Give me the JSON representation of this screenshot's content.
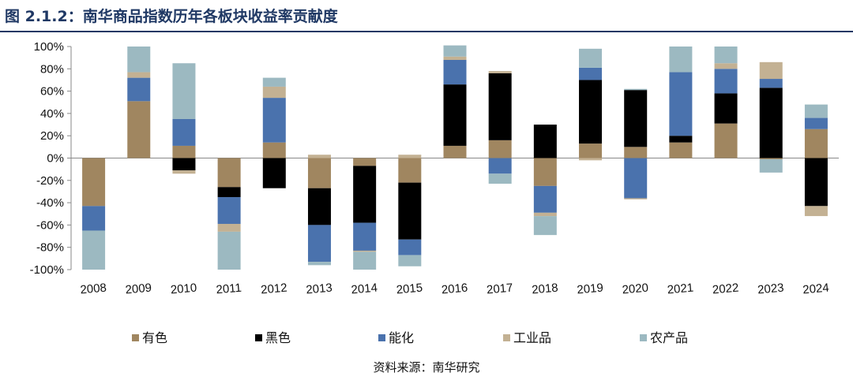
{
  "figure": {
    "title": "图 2.1.2：南华商品指数历年各板块收益率贡献度",
    "source": "资料来源：南华研究"
  },
  "chart_data": {
    "type": "bar",
    "stacked": true,
    "categories": [
      "2008",
      "2009",
      "2010",
      "2011",
      "2012",
      "2013",
      "2014",
      "2015",
      "2016",
      "2017",
      "2018",
      "2019",
      "2020",
      "2021",
      "2022",
      "2023",
      "2024"
    ],
    "series": [
      {
        "name": "有色",
        "color": "#a08660",
        "values": [
          -43,
          51,
          11,
          -26,
          14,
          -27,
          -7,
          -22,
          11,
          16,
          -25,
          13,
          10,
          14,
          31,
          -1,
          26
        ]
      },
      {
        "name": "黑色",
        "color": "#000000",
        "values": [
          0,
          0,
          -11,
          -9,
          -27,
          -33,
          -51,
          -51,
          55,
          60,
          30,
          57,
          51,
          6,
          27,
          63,
          -43
        ]
      },
      {
        "name": "能化",
        "color": "#4a72ad",
        "values": [
          -22,
          21,
          24,
          -24,
          40,
          -33,
          -25,
          -14,
          22,
          -14,
          -24,
          11,
          -36,
          57,
          22,
          8,
          10
        ]
      },
      {
        "name": "工业品",
        "color": "#c3b193",
        "values": [
          0,
          5,
          -3,
          -7,
          10,
          3,
          -1,
          3,
          3,
          2,
          -3,
          -2,
          -1,
          0,
          5,
          15,
          -9
        ]
      },
      {
        "name": "农产品",
        "color": "#9cb9c1",
        "values": [
          -35,
          23,
          50,
          -34,
          8,
          -3,
          -16,
          -10,
          10,
          -9,
          -17,
          17,
          1,
          23,
          15,
          -12,
          12
        ]
      }
    ],
    "ylim": [
      -100,
      100
    ],
    "yticks": [
      -100,
      -80,
      -60,
      -40,
      -20,
      0,
      20,
      40,
      60,
      80,
      100
    ],
    "ytick_labels": [
      "-100%",
      "-80%",
      "-60%",
      "-40%",
      "-20%",
      "0%",
      "20%",
      "40%",
      "60%",
      "80%",
      "100%"
    ],
    "xtick_rotation": -5,
    "grid": false,
    "legend_position": "bottom"
  }
}
